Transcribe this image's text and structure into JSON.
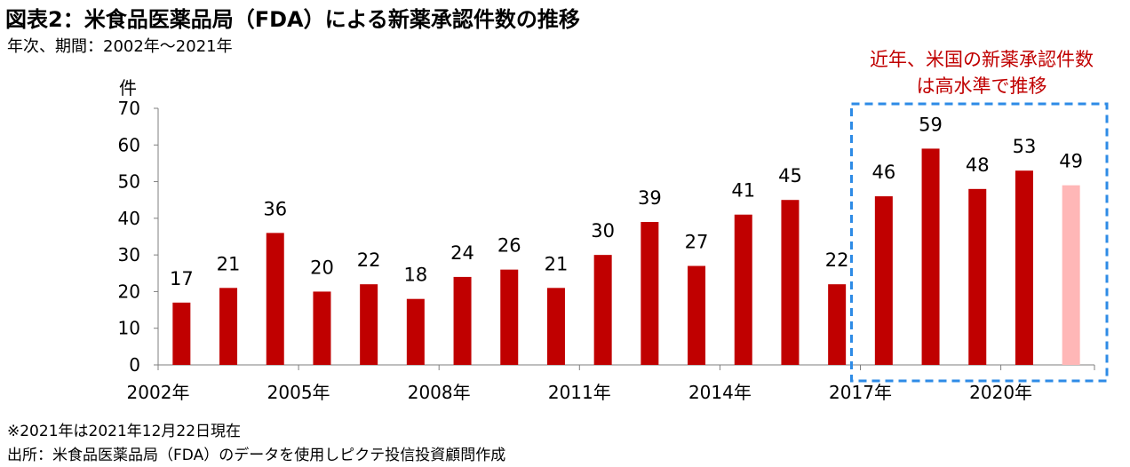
{
  "title": "図表2：米食品医薬品局（FDA）による新薬承認件数の推移",
  "subtitle": "年次、期間：2002年～2021年",
  "notes": {
    "note1": "※2021年は2021年12月22日現在",
    "note2": "出所：米食品医薬品局（FDA）のデータを使用しピクテ投信投資顧問作成"
  },
  "annotation": {
    "line1": "近年、米国の新薬承認件数",
    "line2": "は高水準で推移",
    "color": "#c00000",
    "box_color": "#2e8be6"
  },
  "chart_data": {
    "type": "bar",
    "ylabel": "件",
    "ylim": [
      0,
      70
    ],
    "yticks": [
      0,
      10,
      20,
      30,
      40,
      50,
      60,
      70
    ],
    "categories": [
      "2002",
      "2003",
      "2004",
      "2005",
      "2006",
      "2007",
      "2008",
      "2009",
      "2010",
      "2011",
      "2012",
      "2013",
      "2014",
      "2015",
      "2016",
      "2017",
      "2018",
      "2019",
      "2020",
      "2021"
    ],
    "values": [
      17,
      21,
      36,
      20,
      22,
      18,
      24,
      26,
      21,
      30,
      39,
      27,
      41,
      45,
      22,
      46,
      59,
      48,
      53,
      49
    ],
    "xtick_labels": [
      {
        "index": 0,
        "label": "2002年"
      },
      {
        "index": 3,
        "label": "2005年"
      },
      {
        "index": 6,
        "label": "2008年"
      },
      {
        "index": 9,
        "label": "2011年"
      },
      {
        "index": 12,
        "label": "2014年"
      },
      {
        "index": 15,
        "label": "2017年"
      },
      {
        "index": 18,
        "label": "2020年"
      }
    ],
    "highlight_start_index": 15,
    "bar_color": "#c00000",
    "partial_year_color": "#ffb7b7",
    "partial_year_index": 19,
    "grid": false
  }
}
